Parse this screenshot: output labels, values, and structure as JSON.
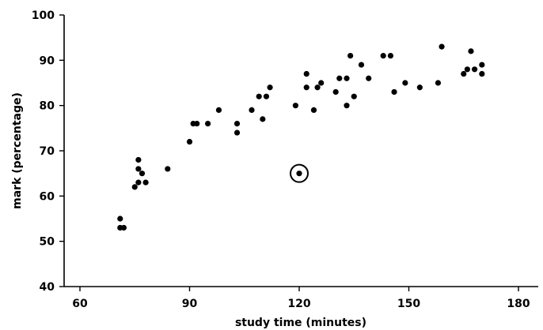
{
  "chart_data": {
    "type": "scatter",
    "title": "",
    "xlabel": "study time (minutes)",
    "ylabel": "mark (percentage)",
    "xlim": [
      55,
      180
    ],
    "ylim": [
      40,
      100
    ],
    "x_ticks": [
      60,
      90,
      120,
      150,
      180
    ],
    "y_ticks": [
      40,
      50,
      60,
      70,
      80,
      90,
      100
    ],
    "x_tick_labels": [
      "60",
      "90",
      "120",
      "150",
      "180"
    ],
    "y_tick_labels": [
      "40",
      "50",
      "60",
      "70",
      "80",
      "90",
      "100"
    ],
    "grid": false,
    "legend": "none",
    "point_color": "#000000",
    "points": [
      {
        "x": 71,
        "y": 55
      },
      {
        "x": 71,
        "y": 53
      },
      {
        "x": 72,
        "y": 53
      },
      {
        "x": 75,
        "y": 62
      },
      {
        "x": 76,
        "y": 63
      },
      {
        "x": 76,
        "y": 66
      },
      {
        "x": 76,
        "y": 68
      },
      {
        "x": 77,
        "y": 65
      },
      {
        "x": 78,
        "y": 63
      },
      {
        "x": 84,
        "y": 66
      },
      {
        "x": 90,
        "y": 72
      },
      {
        "x": 91,
        "y": 76
      },
      {
        "x": 92,
        "y": 76
      },
      {
        "x": 95,
        "y": 76
      },
      {
        "x": 98,
        "y": 79
      },
      {
        "x": 103,
        "y": 76
      },
      {
        "x": 103,
        "y": 74
      },
      {
        "x": 107,
        "y": 79
      },
      {
        "x": 109,
        "y": 82
      },
      {
        "x": 110,
        "y": 77
      },
      {
        "x": 111,
        "y": 82
      },
      {
        "x": 112,
        "y": 84
      },
      {
        "x": 119,
        "y": 80
      },
      {
        "x": 122,
        "y": 87
      },
      {
        "x": 122,
        "y": 84
      },
      {
        "x": 124,
        "y": 79
      },
      {
        "x": 125,
        "y": 84
      },
      {
        "x": 126,
        "y": 85
      },
      {
        "x": 130,
        "y": 83
      },
      {
        "x": 131,
        "y": 86
      },
      {
        "x": 133,
        "y": 86
      },
      {
        "x": 133,
        "y": 80
      },
      {
        "x": 134,
        "y": 91
      },
      {
        "x": 135,
        "y": 82
      },
      {
        "x": 137,
        "y": 89
      },
      {
        "x": 139,
        "y": 86
      },
      {
        "x": 143,
        "y": 91
      },
      {
        "x": 145,
        "y": 91
      },
      {
        "x": 146,
        "y": 83
      },
      {
        "x": 149,
        "y": 85
      },
      {
        "x": 153,
        "y": 84
      },
      {
        "x": 158,
        "y": 85
      },
      {
        "x": 159,
        "y": 93
      },
      {
        "x": 165,
        "y": 87
      },
      {
        "x": 166,
        "y": 88
      },
      {
        "x": 167,
        "y": 92
      },
      {
        "x": 168,
        "y": 88
      },
      {
        "x": 170,
        "y": 89
      },
      {
        "x": 170,
        "y": 87
      }
    ],
    "highlighted_point": {
      "x": 120,
      "y": 65
    }
  }
}
